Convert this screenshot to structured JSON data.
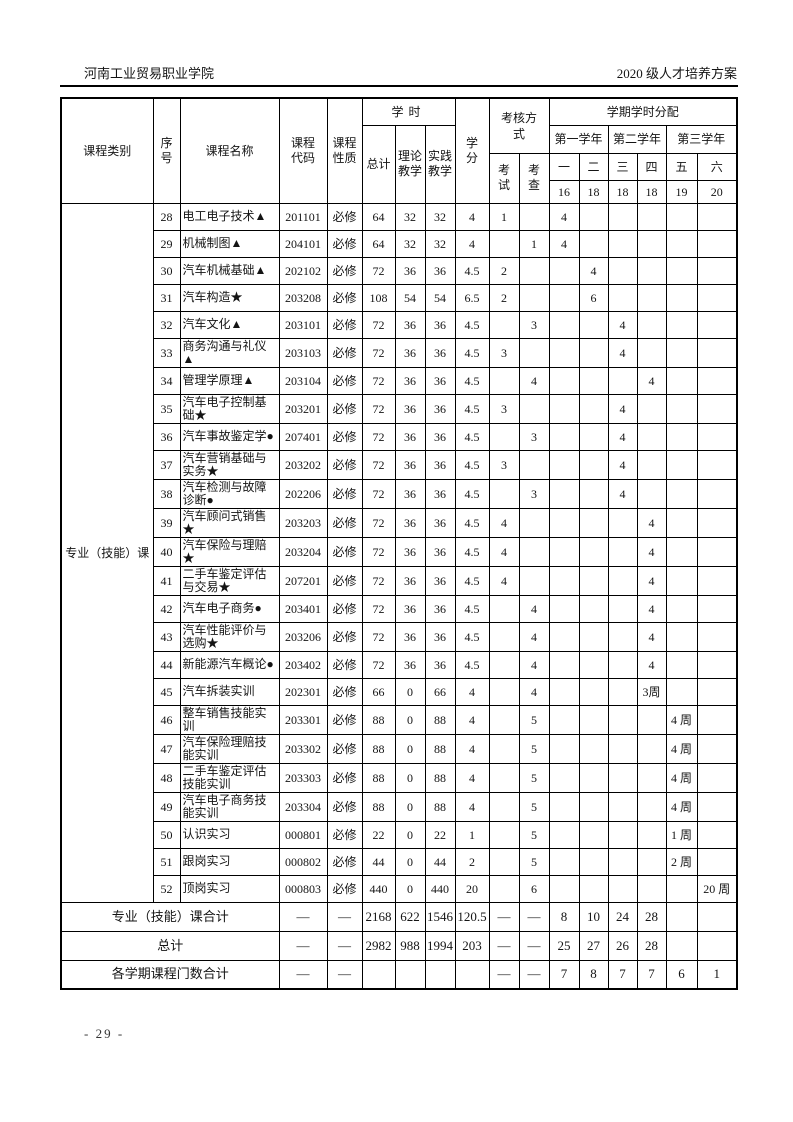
{
  "page_header": {
    "left": "河南工业贸易职业学院",
    "right": "2020 级人才培养方案"
  },
  "page_footer": {
    "page_number": "- 29 -"
  },
  "table": {
    "headers": {
      "category": "课程类别",
      "seq": "序号",
      "course_name": "课程名称",
      "course_code": "课程代码",
      "course_nature": "课程性质",
      "hours": "学时",
      "hours_total": "总计",
      "hours_theory": "理论教学",
      "hours_practice": "实践教学",
      "credits": "学分",
      "assessment": "考核方式",
      "exam": "考试",
      "check": "考查",
      "semester_alloc": "学期学时分配",
      "year1": "第一学年",
      "year2": "第二学年",
      "year3": "第三学年",
      "semesters": [
        "一",
        "二",
        "三",
        "四",
        "五",
        "六"
      ],
      "weeks": [
        "16",
        "18",
        "18",
        "18",
        "19",
        "20"
      ]
    },
    "category_label": "专业（技能）课",
    "rows": [
      {
        "seq": "28",
        "name": "电工电子技术▲",
        "code": "201101",
        "nature": "必修",
        "total": "64",
        "theory": "32",
        "practice": "32",
        "credits": "4",
        "exam": "1",
        "s1": "4"
      },
      {
        "seq": "29",
        "name": "机械制图▲",
        "code": "204101",
        "nature": "必修",
        "total": "64",
        "theory": "32",
        "practice": "32",
        "credits": "4",
        "check": "1",
        "s1": "4"
      },
      {
        "seq": "30",
        "name": "汽车机械基础▲",
        "code": "202102",
        "nature": "必修",
        "total": "72",
        "theory": "36",
        "practice": "36",
        "credits": "4.5",
        "exam": "2",
        "s2": "4"
      },
      {
        "seq": "31",
        "name": "汽车构造★",
        "code": "203208",
        "nature": "必修",
        "total": "108",
        "theory": "54",
        "practice": "54",
        "credits": "6.5",
        "exam": "2",
        "s2": "6"
      },
      {
        "seq": "32",
        "name": "汽车文化▲",
        "code": "203101",
        "nature": "必修",
        "total": "72",
        "theory": "36",
        "practice": "36",
        "credits": "4.5",
        "check": "3",
        "s3": "4"
      },
      {
        "seq": "33",
        "name": "商务沟通与礼仪▲",
        "code": "203103",
        "nature": "必修",
        "total": "72",
        "theory": "36",
        "practice": "36",
        "credits": "4.5",
        "exam": "3",
        "s3": "4"
      },
      {
        "seq": "34",
        "name": "管理学原理▲",
        "code": "203104",
        "nature": "必修",
        "total": "72",
        "theory": "36",
        "practice": "36",
        "credits": "4.5",
        "check": "4",
        "s4": "4"
      },
      {
        "seq": "35",
        "name": "汽车电子控制基础★",
        "code": "203201",
        "nature": "必修",
        "total": "72",
        "theory": "36",
        "practice": "36",
        "credits": "4.5",
        "exam": "3",
        "s3": "4"
      },
      {
        "seq": "36",
        "name": "汽车事故鉴定学●",
        "code": "207401",
        "nature": "必修",
        "total": "72",
        "theory": "36",
        "practice": "36",
        "credits": "4.5",
        "check": "3",
        "s3": "4"
      },
      {
        "seq": "37",
        "name": "汽车营销基础与实务★",
        "code": "203202",
        "nature": "必修",
        "total": "72",
        "theory": "36",
        "practice": "36",
        "credits": "4.5",
        "exam": "3",
        "s3": "4"
      },
      {
        "seq": "38",
        "name": "汽车检测与故障诊断●",
        "code": "202206",
        "nature": "必修",
        "total": "72",
        "theory": "36",
        "practice": "36",
        "credits": "4.5",
        "check": "3",
        "s3": "4"
      },
      {
        "seq": "39",
        "name": "汽车顾问式销售★",
        "code": "203203",
        "nature": "必修",
        "total": "72",
        "theory": "36",
        "practice": "36",
        "credits": "4.5",
        "exam": "4",
        "s4": "4"
      },
      {
        "seq": "40",
        "name": "汽车保险与理赔★",
        "code": "203204",
        "nature": "必修",
        "total": "72",
        "theory": "36",
        "practice": "36",
        "credits": "4.5",
        "exam": "4",
        "s4": "4"
      },
      {
        "seq": "41",
        "name": "二手车鉴定评估与交易★",
        "code": "207201",
        "nature": "必修",
        "total": "72",
        "theory": "36",
        "practice": "36",
        "credits": "4.5",
        "exam": "4",
        "s4": "4"
      },
      {
        "seq": "42",
        "name": "汽车电子商务●",
        "code": "203401",
        "nature": "必修",
        "total": "72",
        "theory": "36",
        "practice": "36",
        "credits": "4.5",
        "check": "4",
        "s4": "4"
      },
      {
        "seq": "43",
        "name": "汽车性能评价与选购★",
        "code": "203206",
        "nature": "必修",
        "total": "72",
        "theory": "36",
        "practice": "36",
        "credits": "4.5",
        "check": "4",
        "s4": "4"
      },
      {
        "seq": "44",
        "name": "新能源汽车概论●",
        "code": "203402",
        "nature": "必修",
        "total": "72",
        "theory": "36",
        "practice": "36",
        "credits": "4.5",
        "check": "4",
        "s4": "4"
      },
      {
        "seq": "45",
        "name": "汽车拆装实训",
        "code": "202301",
        "nature": "必修",
        "total": "66",
        "theory": "0",
        "practice": "66",
        "credits": "4",
        "check": "4",
        "s4": "3周"
      },
      {
        "seq": "46",
        "name": "整车销售技能实训",
        "code": "203301",
        "nature": "必修",
        "total": "88",
        "theory": "0",
        "practice": "88",
        "credits": "4",
        "check": "5",
        "s5": "4 周"
      },
      {
        "seq": "47",
        "name": "汽车保险理赔技能实训",
        "code": "203302",
        "nature": "必修",
        "total": "88",
        "theory": "0",
        "practice": "88",
        "credits": "4",
        "check": "5",
        "s5": "4 周"
      },
      {
        "seq": "48",
        "name": "二手车鉴定评估技能实训",
        "code": "203303",
        "nature": "必修",
        "total": "88",
        "theory": "0",
        "practice": "88",
        "credits": "4",
        "check": "5",
        "s5": "4 周"
      },
      {
        "seq": "49",
        "name": "汽车电子商务技能实训",
        "code": "203304",
        "nature": "必修",
        "total": "88",
        "theory": "0",
        "practice": "88",
        "credits": "4",
        "check": "5",
        "s5": "4 周"
      },
      {
        "seq": "50",
        "name": "认识实习",
        "code": "000801",
        "nature": "必修",
        "total": "22",
        "theory": "0",
        "practice": "22",
        "credits": "1",
        "check": "5",
        "s5": "1 周"
      },
      {
        "seq": "51",
        "name": "跟岗实习",
        "code": "000802",
        "nature": "必修",
        "total": "44",
        "theory": "0",
        "practice": "44",
        "credits": "2",
        "check": "5",
        "s5": "2 周"
      },
      {
        "seq": "52",
        "name": "顶岗实习",
        "code": "000803",
        "nature": "必修",
        "total": "440",
        "theory": "0",
        "practice": "440",
        "credits": "20",
        "check": "6",
        "s6": "20 周"
      }
    ],
    "summary_rows": [
      {
        "label": "专业（技能）课合计",
        "code": "—",
        "nature": "—",
        "total": "2168",
        "theory": "622",
        "practice": "1546",
        "credits": "120.5",
        "exam": "—",
        "check": "—",
        "s1": "8",
        "s2": "10",
        "s3": "24",
        "s4": "28"
      },
      {
        "label": "总计",
        "code": "—",
        "nature": "—",
        "total": "2982",
        "theory": "988",
        "practice": "1994",
        "credits": "203",
        "exam": "—",
        "check": "—",
        "s1": "25",
        "s2": "27",
        "s3": "26",
        "s4": "28"
      },
      {
        "label": "各学期课程门数合计",
        "code": "—",
        "nature": "—",
        "exam": "—",
        "check": "—",
        "s1": "7",
        "s2": "8",
        "s3": "7",
        "s4": "7",
        "s5": "6",
        "s6": "1"
      }
    ]
  }
}
